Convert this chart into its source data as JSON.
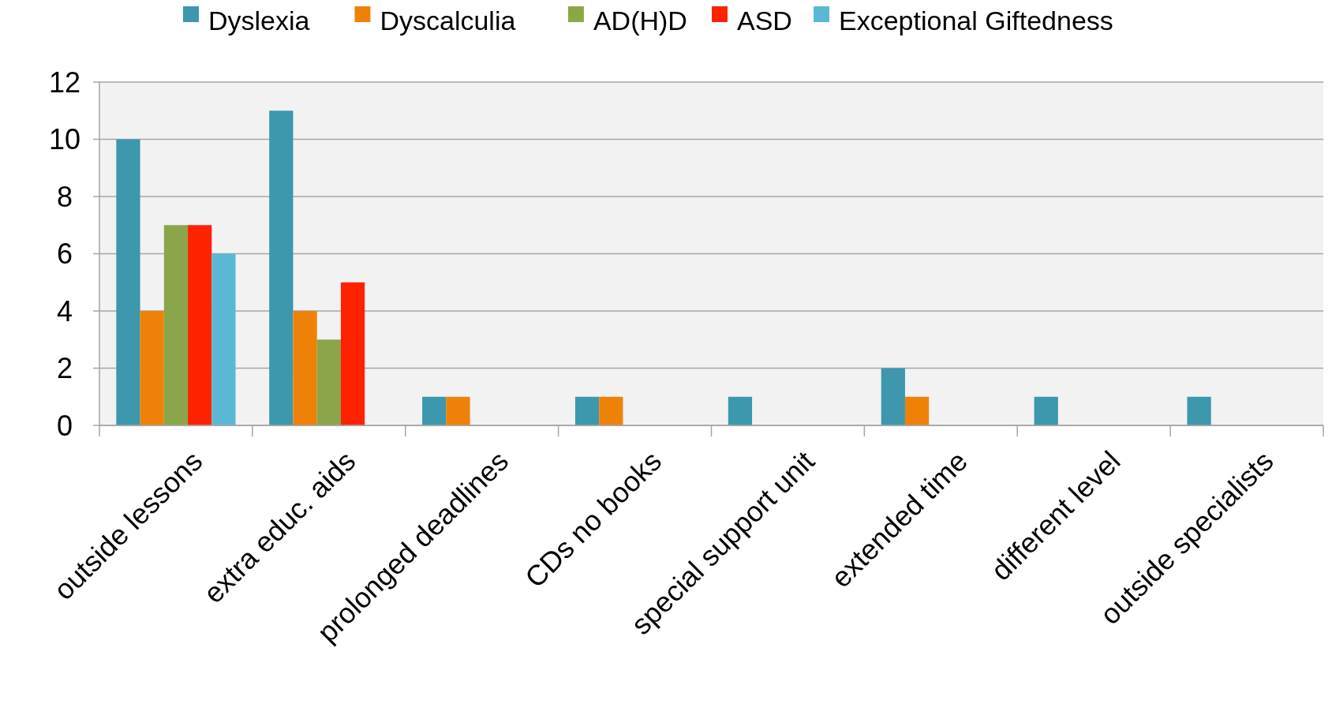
{
  "chart_data": {
    "type": "bar",
    "categories": [
      "outside lessons",
      "extra educ. aids",
      "prolonged deadlines",
      "CDs no books",
      "special support unit",
      "extended time",
      "different level",
      "outside specialists"
    ],
    "series": [
      {
        "name": "Dyslexia",
        "color": "#3d97ad",
        "values": [
          10,
          11,
          1,
          1,
          1,
          2,
          1,
          1
        ]
      },
      {
        "name": "Dyscalculia",
        "color": "#ee8208",
        "values": [
          4,
          4,
          1,
          1,
          0,
          1,
          0,
          0
        ]
      },
      {
        "name": "AD(H)D",
        "color": "#8ba64a",
        "values": [
          7,
          3,
          0,
          0,
          0,
          0,
          0,
          0
        ]
      },
      {
        "name": "ASD",
        "color": "#ff2200",
        "values": [
          7,
          5,
          0,
          0,
          0,
          0,
          0,
          0
        ]
      },
      {
        "name": "Exceptional Giftedness",
        "color": "#5bb8d4",
        "values": [
          6,
          0,
          0,
          0,
          0,
          0,
          0,
          0
        ]
      }
    ],
    "ylim": [
      0,
      12
    ],
    "yticks": [
      0,
      2,
      4,
      6,
      8,
      10,
      12
    ],
    "grid": "y",
    "legend": "top"
  }
}
